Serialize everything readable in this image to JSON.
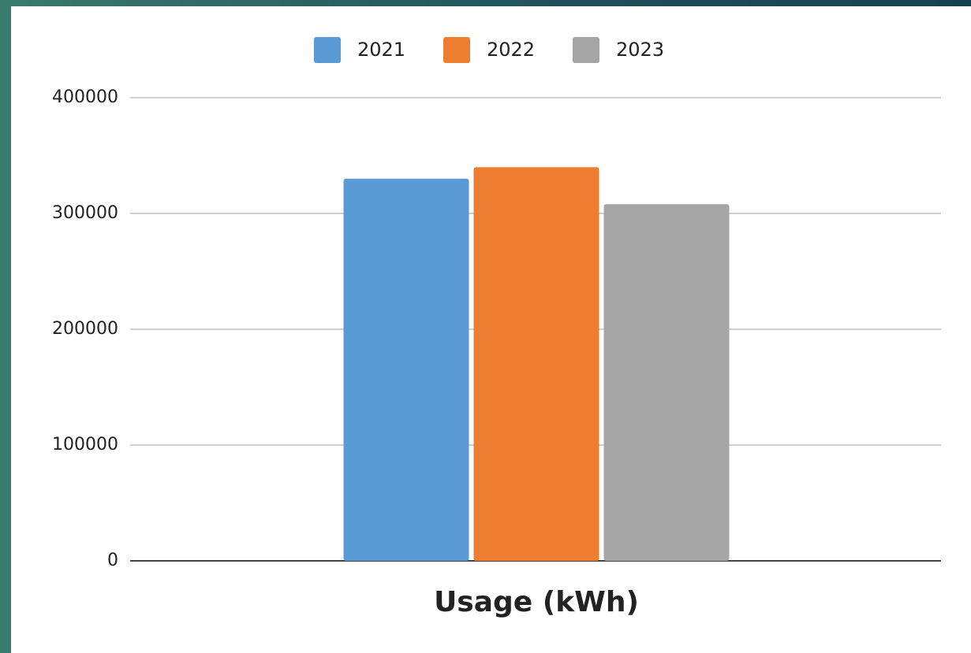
{
  "chart_data": {
    "type": "bar",
    "categories": [
      "Usage (kWh)"
    ],
    "series": [
      {
        "name": "2021",
        "color": "#5b9bd5",
        "values": [
          330000
        ]
      },
      {
        "name": "2022",
        "color": "#ed7d31",
        "values": [
          340000
        ]
      },
      {
        "name": "2023",
        "color": "#a5a5a5",
        "values": [
          308000
        ]
      }
    ],
    "ylim": [
      0,
      400000
    ],
    "yticks": [
      0,
      100000,
      200000,
      300000,
      400000
    ],
    "grid": true,
    "legend": "top"
  }
}
